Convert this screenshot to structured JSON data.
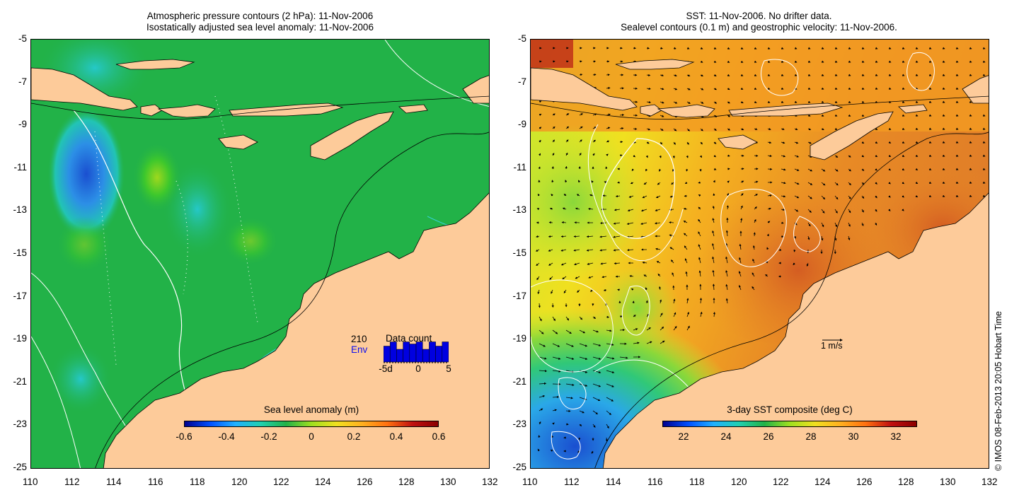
{
  "left_map": {
    "title_line1": "Atmospheric pressure contours (2 hPa): 11-Nov-2006",
    "title_line2": "Isostatically adjusted sea level anomaly: 11-Nov-2006",
    "colorbar_label": "Sea level anomaly (m)",
    "colorbar_ticks": [
      "-0.6",
      "-0.4",
      "-0.2",
      "0",
      "0.2",
      "0.4",
      "0.6"
    ],
    "data_count": {
      "title": "Data count",
      "count": "210",
      "source": "Env",
      "axis_ticks": [
        "-5d",
        "0",
        "5"
      ],
      "bars": [
        0.75,
        0.95,
        0.6,
        0.95,
        0.85,
        0.95,
        0.6,
        0.95,
        0.75,
        0.95
      ]
    },
    "colors": {
      "ocean": "#22b248",
      "land": "#fdcb9a",
      "source_text": "#1010ee"
    }
  },
  "right_map": {
    "title_line1": "SST: 11-Nov-2006. No drifter data.",
    "title_line2": "Sealevel contours (0.1 m) and geostrophic velocity: 11-Nov-2006.",
    "colorbar_label": "3-day SST composite (deg C)",
    "colorbar_ticks": [
      "22",
      "24",
      "26",
      "28",
      "30",
      "32"
    ],
    "velocity_scale_label": "1 m/s",
    "colors": {
      "land": "#fdcb9a",
      "warm_sea": "#f29a22"
    }
  },
  "axes": {
    "x_ticks": [
      "110",
      "112",
      "114",
      "116",
      "118",
      "120",
      "122",
      "124",
      "126",
      "128",
      "130",
      "132"
    ],
    "y_ticks": [
      "-5",
      "-7",
      "-9",
      "-11",
      "-13",
      "-15",
      "-17",
      "-19",
      "-21",
      "-23",
      "-25"
    ]
  },
  "copyright": "© IMOS 08-Feb-2013 20:05 Hobart Time"
}
